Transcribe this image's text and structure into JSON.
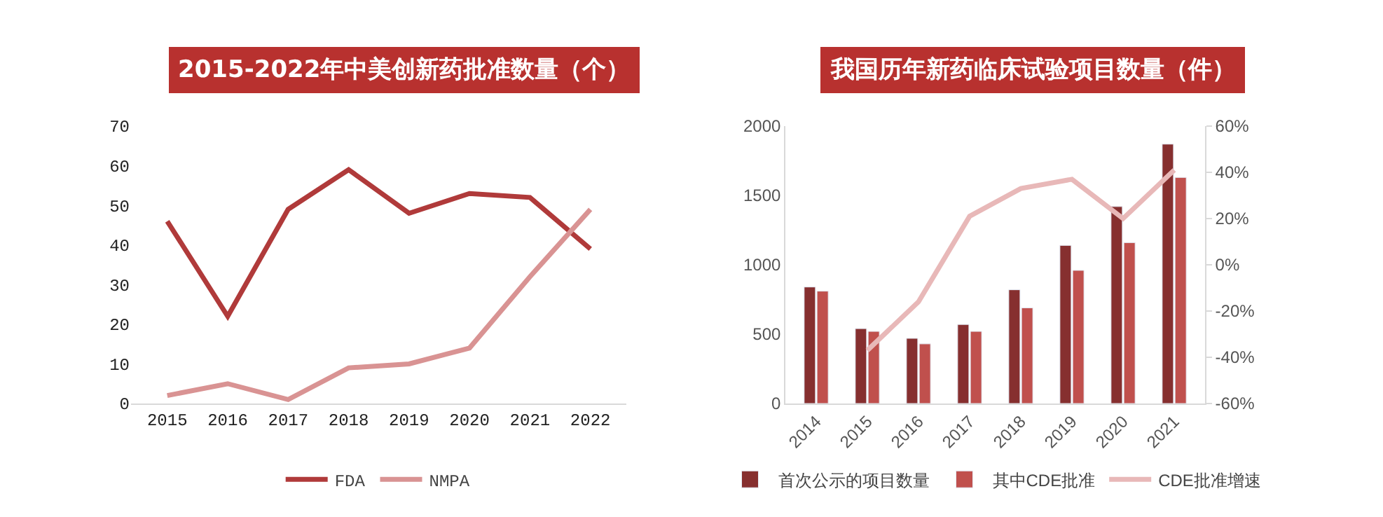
{
  "chart_data": [
    {
      "type": "line",
      "title": "2015-2022年中美创新药批准数量（个）",
      "categories": [
        "2015",
        "2016",
        "2017",
        "2018",
        "2019",
        "2020",
        "2021",
        "2022"
      ],
      "series": [
        {
          "name": "FDA",
          "color": "#b03a3a",
          "values": [
            46,
            22,
            49,
            59,
            48,
            53,
            52,
            39
          ]
        },
        {
          "name": "NMPA",
          "color": "#d99393",
          "values": [
            2,
            5,
            1,
            9,
            10,
            14,
            32,
            49
          ]
        }
      ],
      "ylim": [
        0,
        70
      ],
      "yticks": [
        0,
        10,
        20,
        30,
        40,
        50,
        60,
        70
      ],
      "legend": "bottom",
      "marker": "none",
      "line_style": "solid"
    },
    {
      "type": "bar",
      "title": "我国历年新药临床试验项目数量（件）",
      "categories": [
        "2014",
        "2015",
        "2016",
        "2017",
        "2018",
        "2019",
        "2020",
        "2021"
      ],
      "series": [
        {
          "name": "首次公示的项目数量",
          "color": "#862f2f",
          "values": [
            840,
            540,
            470,
            570,
            820,
            1140,
            1420,
            1870
          ]
        },
        {
          "name": "其中CDE批准",
          "color": "#c0504d",
          "values": [
            810,
            520,
            430,
            520,
            690,
            960,
            1160,
            1630
          ]
        },
        {
          "name": "CDE批准增速",
          "type": "line",
          "axis": "y2",
          "color": "#e8b8b8",
          "values": [
            null,
            -37,
            -16,
            21,
            33,
            37,
            20,
            41
          ]
        }
      ],
      "ylim": [
        0,
        2000
      ],
      "yticks": [
        0,
        500,
        1000,
        1500,
        2000
      ],
      "y2lim": [
        -60,
        60
      ],
      "y2ticks": [
        {
          "value": -60,
          "label": "-60%"
        },
        {
          "value": -40,
          "label": "-40%"
        },
        {
          "value": -20,
          "label": "-20%"
        },
        {
          "value": 0,
          "label": "0%"
        },
        {
          "value": 20,
          "label": "20%"
        },
        {
          "value": 40,
          "label": "40%"
        },
        {
          "value": 60,
          "label": "60%"
        }
      ],
      "legend": "bottom"
    }
  ]
}
